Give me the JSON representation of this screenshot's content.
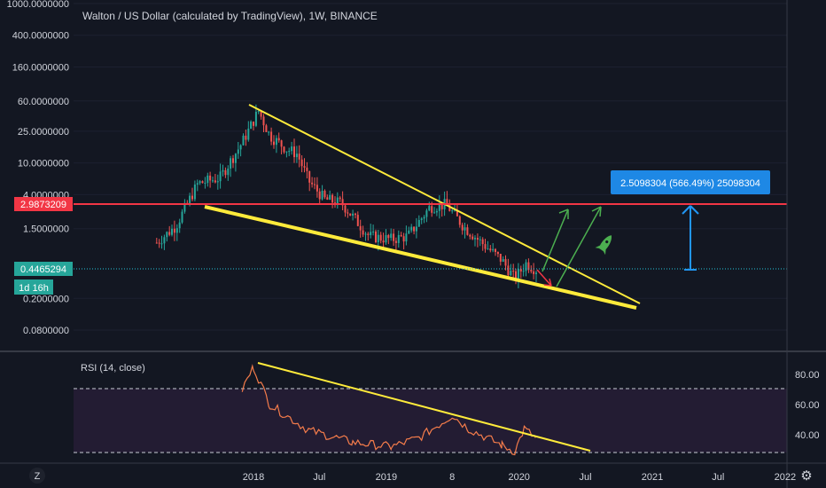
{
  "colors": {
    "background": "#131722",
    "axis_text": "#d1d4dc",
    "candle_up": "#26a69a",
    "candle_down": "#ef5350",
    "trendline": "#ffeb3b",
    "resistance": "#f23645",
    "rsi_line": "#f57c4b",
    "rsi_band": "#2e2040",
    "measure": "#2196f3",
    "arrow_green": "#4caf50",
    "arrow_red": "#f23645",
    "price_line": "#26c6da"
  },
  "chart_data": [
    {
      "type": "candlestick",
      "title": "Walton / US Dollar (calculated by TradingView), 1W, BINANCE",
      "scale": "log",
      "ylim": [
        0.045,
        1100
      ],
      "y_ticks": [
        "1000.0000000",
        "400.0000000",
        "160.0000000",
        "60.0000000",
        "25.0000000",
        "10.0000000",
        "4.0000000",
        "1.5000000",
        "0.2000000",
        "0.0800000"
      ],
      "x_ticks": [
        "2018",
        "Jul",
        "2019",
        "8",
        "2020",
        "Jul",
        "2021",
        "Jul",
        "2022"
      ],
      "approx_close_series": [
        {
          "x": "2017-04-10",
          "y": 1.0
        },
        {
          "x": "2017-06-01",
          "y": 1.6
        },
        {
          "x": "2017-08-01",
          "y": 5.5
        },
        {
          "x": "2017-10-01",
          "y": 6.5
        },
        {
          "x": "2017-12-01",
          "y": 18
        },
        {
          "x": "2018-01-15",
          "y": 45
        },
        {
          "x": "2018-02-15",
          "y": 22
        },
        {
          "x": "2018-04-01",
          "y": 15
        },
        {
          "x": "2018-05-01",
          "y": 13
        },
        {
          "x": "2018-06-01",
          "y": 6
        },
        {
          "x": "2018-07-15",
          "y": 3.5
        },
        {
          "x": "2018-09-01",
          "y": 3.1
        },
        {
          "x": "2018-11-15",
          "y": 1.2
        },
        {
          "x": "2019-01-15",
          "y": 1.1
        },
        {
          "x": "2019-03-01",
          "y": 1.2
        },
        {
          "x": "2019-05-01",
          "y": 2.8
        },
        {
          "x": "2019-06-15",
          "y": 3.0
        },
        {
          "x": "2019-08-01",
          "y": 1.6
        },
        {
          "x": "2019-10-01",
          "y": 0.9
        },
        {
          "x": "2019-11-15",
          "y": 0.6
        },
        {
          "x": "2019-12-20",
          "y": 0.35
        },
        {
          "x": "2020-01-20",
          "y": 0.55
        },
        {
          "x": "2020-02-20",
          "y": 0.45
        }
      ],
      "annotations": {
        "current_price": "0.4465294",
        "resistance_price": "2.9873209",
        "countdown": "1d 16h",
        "measure_label": "2.5098304 (566.49%) 25098304"
      }
    },
    {
      "type": "line",
      "title": "RSI (14, close)",
      "ylim": [
        25,
        92
      ],
      "y_ticks": [
        "80.00",
        "60.00",
        "40.00"
      ],
      "bands": [
        30,
        70
      ],
      "approx_series": [
        {
          "x": "2017-12-01",
          "y": 70
        },
        {
          "x": "2018-01-01",
          "y": 85
        },
        {
          "x": "2018-02-15",
          "y": 60
        },
        {
          "x": "2018-06-01",
          "y": 43
        },
        {
          "x": "2018-10-01",
          "y": 35
        },
        {
          "x": "2019-01-15",
          "y": 32
        },
        {
          "x": "2019-04-01",
          "y": 38
        },
        {
          "x": "2019-06-15",
          "y": 50
        },
        {
          "x": "2019-07-01",
          "y": 53
        },
        {
          "x": "2019-08-15",
          "y": 44
        },
        {
          "x": "2019-11-15",
          "y": 33
        },
        {
          "x": "2019-12-20",
          "y": 29
        },
        {
          "x": "2020-01-15",
          "y": 44
        },
        {
          "x": "2020-02-15",
          "y": 38
        }
      ]
    }
  ],
  "ui": {
    "timezone_label": "Z",
    "gear_label": "⚙"
  }
}
